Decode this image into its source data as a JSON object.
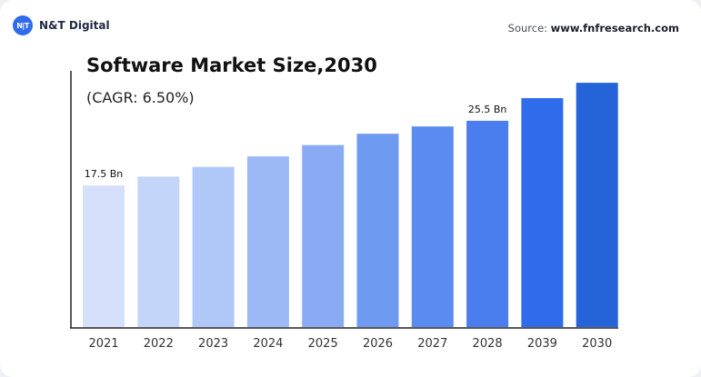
{
  "brand": {
    "logo_text": "N|T",
    "name": "N&T Digital"
  },
  "source": {
    "label": "Source:",
    "value": "www.fnfresearch.com"
  },
  "chart_data": {
    "type": "bar",
    "title": "Software Market Size,2030",
    "subtitle": "(CAGR: 6.50%)",
    "categories": [
      "2021",
      "2022",
      "2023",
      "2024",
      "2025",
      "2026",
      "2027",
      "2028",
      "2039",
      "2030"
    ],
    "values": [
      17.5,
      18.6,
      19.8,
      21.1,
      22.5,
      23.9,
      24.8,
      25.5,
      28.3,
      30.2
    ],
    "data_labels": [
      {
        "index": 0,
        "text": "17.5 Bn"
      },
      {
        "index": 7,
        "text": "25.5 Bn"
      }
    ],
    "ylim": [
      0,
      31
    ],
    "grid": false,
    "colors": [
      "#d5e1fb",
      "#c4d5fa",
      "#b0c8f8",
      "#9cb9f6",
      "#88abf4",
      "#6f9af2",
      "#5a8bf0",
      "#4a7ded",
      "#2f6bea",
      "#2563d8"
    ]
  }
}
